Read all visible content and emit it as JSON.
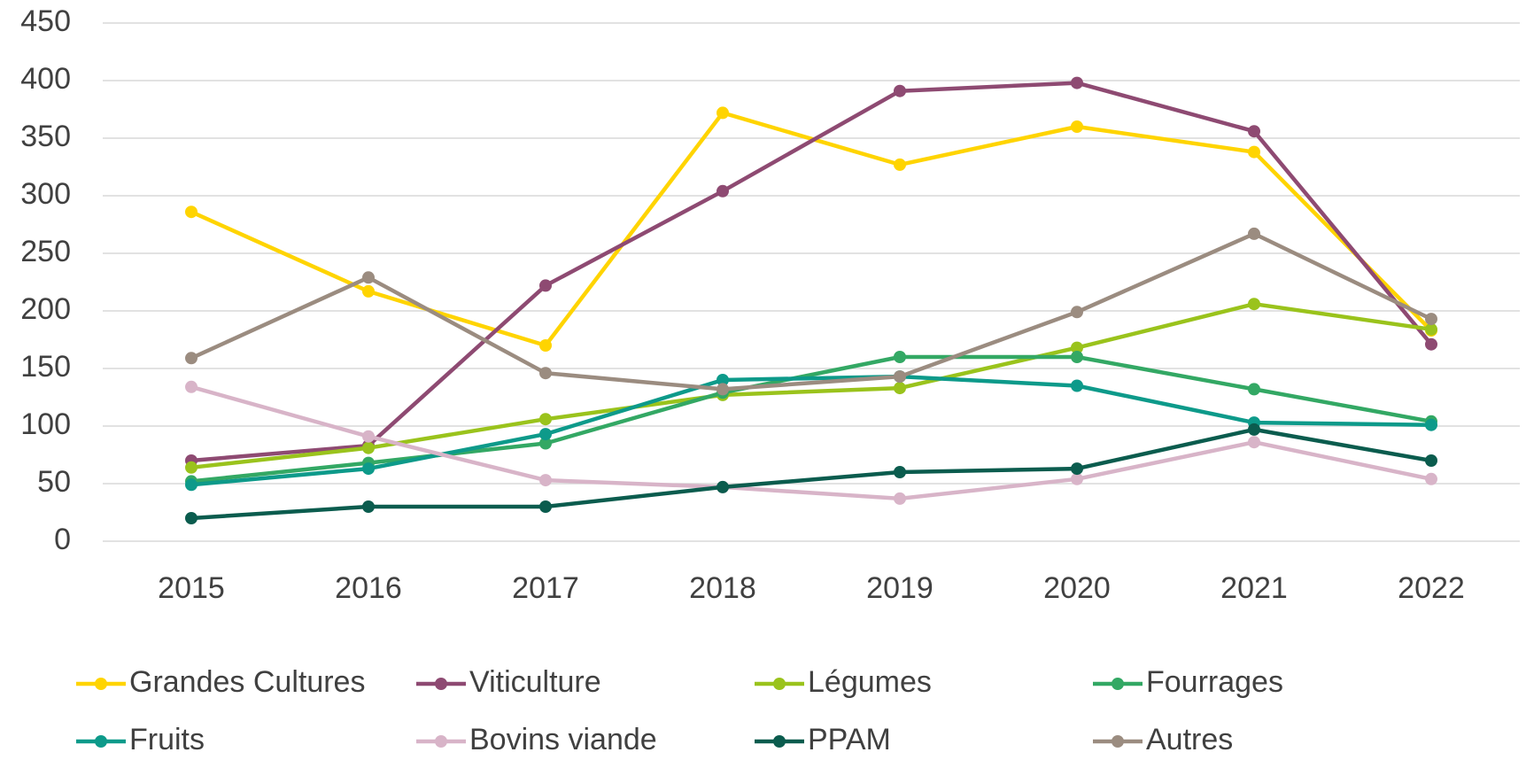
{
  "chart_data": {
    "type": "line",
    "categories": [
      "2015",
      "2016",
      "2017",
      "2018",
      "2019",
      "2020",
      "2021",
      "2022"
    ],
    "series": [
      {
        "name": "Grandes Cultures",
        "color": "#ffd400",
        "values": [
          286,
          217,
          170,
          372,
          327,
          360,
          338,
          183
        ]
      },
      {
        "name": "Viticulture",
        "color": "#8e4a72",
        "values": [
          70,
          83,
          222,
          304,
          391,
          398,
          356,
          171
        ]
      },
      {
        "name": "Légumes",
        "color": "#9ac31c",
        "values": [
          64,
          81,
          106,
          127,
          133,
          168,
          206,
          184
        ]
      },
      {
        "name": "Fourrages",
        "color": "#33a864",
        "values": [
          52,
          68,
          85,
          129,
          160,
          160,
          132,
          104
        ]
      },
      {
        "name": "Fruits",
        "color": "#0d9a8a",
        "values": [
          49,
          63,
          93,
          140,
          143,
          135,
          103,
          101
        ]
      },
      {
        "name": "Bovins viande",
        "color": "#d8b4c8",
        "values": [
          134,
          91,
          53,
          47,
          37,
          54,
          86,
          54
        ]
      },
      {
        "name": "PPAM",
        "color": "#0b5c4e",
        "values": [
          20,
          30,
          30,
          47,
          60,
          63,
          97,
          70
        ]
      },
      {
        "name": "Autres",
        "color": "#9b8c80",
        "values": [
          159,
          229,
          146,
          132,
          143,
          199,
          267,
          193
        ]
      }
    ],
    "ylim": [
      0,
      450
    ],
    "yticks": [
      0,
      50,
      100,
      150,
      200,
      250,
      300,
      350,
      400,
      450
    ],
    "grid": true
  }
}
